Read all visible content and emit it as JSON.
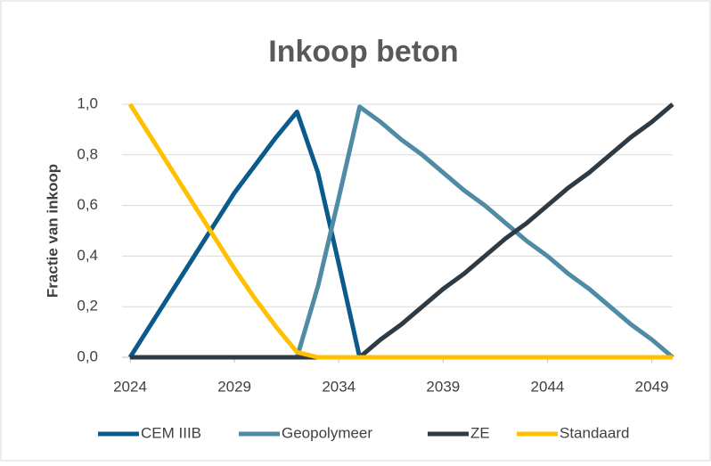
{
  "chart_data": {
    "type": "line",
    "title": "Inkoop beton",
    "y_label": "Fractie van inkoop",
    "x": [
      2024,
      2025,
      2026,
      2027,
      2028,
      2029,
      2030,
      2031,
      2032,
      2033,
      2034,
      2035,
      2036,
      2037,
      2038,
      2039,
      2040,
      2041,
      2042,
      2043,
      2044,
      2045,
      2046,
      2047,
      2048,
      2049,
      2050
    ],
    "series": [
      {
        "name": "CEM IIIB",
        "color": "#0a5a8c",
        "values": [
          0,
          0.13,
          0.26,
          0.39,
          0.52,
          0.65,
          0.76,
          0.87,
          0.97,
          0.73,
          0.37,
          0,
          0,
          0,
          0,
          0,
          0,
          0,
          0,
          0,
          0,
          0,
          0,
          0,
          0,
          0,
          0
        ]
      },
      {
        "name": "Geopolymeer",
        "color": "#4f8ba3",
        "values": [
          0,
          0,
          0,
          0,
          0,
          0,
          0,
          0,
          0,
          0.28,
          0.63,
          0.99,
          0.93,
          0.86,
          0.8,
          0.73,
          0.66,
          0.6,
          0.53,
          0.46,
          0.4,
          0.33,
          0.27,
          0.2,
          0.13,
          0.07,
          0
        ]
      },
      {
        "name": "ZE",
        "color": "#2e3a44",
        "values": [
          0,
          0,
          0,
          0,
          0,
          0,
          0,
          0,
          0,
          0,
          0,
          0,
          0.07,
          0.13,
          0.2,
          0.27,
          0.33,
          0.4,
          0.47,
          0.53,
          0.6,
          0.67,
          0.73,
          0.8,
          0.87,
          0.93,
          1.0
        ]
      },
      {
        "name": "Standaard",
        "color": "#ffc000",
        "values": [
          1.0,
          0.87,
          0.74,
          0.61,
          0.48,
          0.35,
          0.23,
          0.12,
          0.02,
          0,
          0,
          0,
          0,
          0,
          0,
          0,
          0,
          0,
          0,
          0,
          0,
          0,
          0,
          0,
          0,
          0,
          0
        ]
      }
    ],
    "xlim": [
      2024,
      2050
    ],
    "xticks": [
      2024,
      2029,
      2034,
      2039,
      2044,
      2049
    ],
    "ylim": [
      0,
      1
    ],
    "yticks": [
      {
        "value": 0,
        "label": "0,0"
      },
      {
        "value": 0.2,
        "label": "0,2"
      },
      {
        "value": 0.4,
        "label": "0,4"
      },
      {
        "value": 0.6,
        "label": "0,6"
      },
      {
        "value": 0.8,
        "label": "0,8"
      },
      {
        "value": 1,
        "label": "1,0"
      }
    ],
    "grid": true
  }
}
